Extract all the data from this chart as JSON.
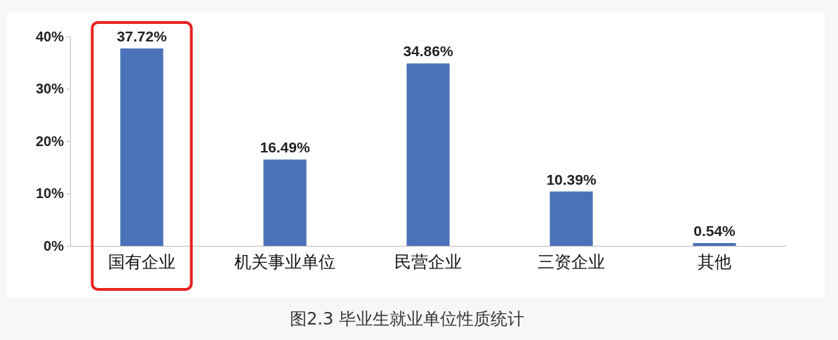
{
  "chart_data": {
    "type": "bar",
    "categories": [
      "国有企业",
      "机关事业单位",
      "民营企业",
      "三资企业",
      "其他"
    ],
    "values": [
      37.72,
      16.49,
      34.86,
      10.39,
      0.54
    ],
    "value_labels": [
      "37.72%",
      "16.49%",
      "34.86%",
      "10.39%",
      "0.54%"
    ],
    "color": "#4a72b8",
    "ylim": [
      0,
      40
    ],
    "yticks": [
      {
        "value": 0,
        "label": "0%"
      },
      {
        "value": 10,
        "label": "10%"
      },
      {
        "value": 20,
        "label": "20%"
      },
      {
        "value": 30,
        "label": "30%"
      },
      {
        "value": 40,
        "label": "40%"
      }
    ],
    "grid": false,
    "annotations": [
      "图2.3  毕业生就业单位性质统计"
    ]
  }
}
